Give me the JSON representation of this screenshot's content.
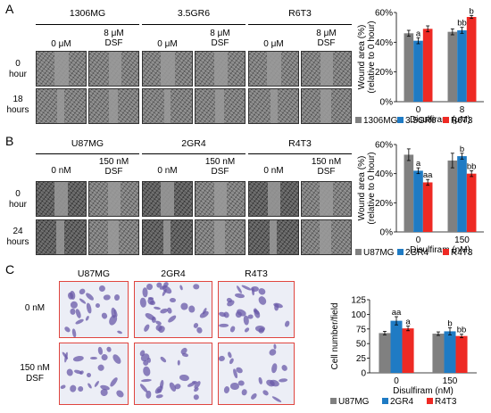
{
  "panels": {
    "a": {
      "letter": "A",
      "cell_lines": [
        "1306MG",
        "3.5GR6",
        "R6T3"
      ],
      "conditions": [
        {
          "line1": "0 μM",
          "line2": ""
        },
        {
          "line1": "8 μM",
          "line2": "DSF"
        }
      ],
      "rows": [
        {
          "line1": "0",
          "line2": "hour"
        },
        {
          "line1": "18",
          "line2": "hours"
        }
      ]
    },
    "b": {
      "letter": "B",
      "cell_lines": [
        "U87MG",
        "2GR4",
        "R4T3"
      ],
      "conditions": [
        {
          "line1": "0  nM",
          "line2": ""
        },
        {
          "line1": "150 nM",
          "line2": "DSF"
        }
      ],
      "rows": [
        {
          "line1": "0",
          "line2": "hour"
        },
        {
          "line1": "24",
          "line2": "hours"
        }
      ]
    },
    "c": {
      "letter": "C",
      "cell_lines": [
        "U87MG",
        "2GR4",
        "R4T3"
      ],
      "rows": [
        {
          "line1": "0 nM",
          "line2": ""
        },
        {
          "line1": "150 nM",
          "line2": "DSF"
        }
      ]
    }
  },
  "colors": {
    "gray": "#808080",
    "blue": "#1f7bc4",
    "red": "#ee2a24",
    "stain_border": "#e0453f"
  },
  "chart_data": [
    {
      "type": "bar",
      "ylabel_line1": "Wound area (%)",
      "ylabel_line2": "(relative to 0 hour)",
      "xlabel": "Disulfiram (μM)",
      "categories": [
        "0",
        "8"
      ],
      "yticks": [
        "0%",
        "20%",
        "40%",
        "60%"
      ],
      "ylim": [
        0,
        60
      ],
      "series": [
        {
          "name": "1306MG",
          "color": "#808080",
          "values": [
            46,
            47
          ],
          "errors": [
            2,
            2
          ],
          "sig": [
            "",
            ""
          ]
        },
        {
          "name": "3.5GR6",
          "color": "#1f7bc4",
          "values": [
            41,
            48
          ],
          "errors": [
            2,
            2
          ],
          "sig": [
            "a",
            "bb"
          ]
        },
        {
          "name": "R6T3",
          "color": "#ee2a24",
          "values": [
            49,
            57
          ],
          "errors": [
            2,
            1
          ],
          "sig": [
            "",
            "b"
          ]
        }
      ]
    },
    {
      "type": "bar",
      "ylabel_line1": "Wound area (%)",
      "ylabel_line2": "(relative to 0 hour)",
      "xlabel": "Disulfiram (nM)",
      "categories": [
        "0",
        "150"
      ],
      "yticks": [
        "0%",
        "20%",
        "40%",
        "60%"
      ],
      "ylim": [
        0,
        60
      ],
      "series": [
        {
          "name": "U87MG",
          "color": "#808080",
          "values": [
            53,
            49
          ],
          "errors": [
            4,
            5
          ],
          "sig": [
            "",
            ""
          ]
        },
        {
          "name": "2GR4",
          "color": "#1f7bc4",
          "values": [
            42,
            52
          ],
          "errors": [
            2,
            2
          ],
          "sig": [
            "a",
            "b"
          ]
        },
        {
          "name": "R4T3",
          "color": "#ee2a24",
          "values": [
            34,
            40
          ],
          "errors": [
            2,
            2
          ],
          "sig": [
            "aa",
            "bb"
          ]
        }
      ]
    },
    {
      "type": "bar",
      "ylabel_line1": "Cell number/field",
      "ylabel_line2": "",
      "xlabel": "Disulfiram (nM)",
      "categories": [
        "0",
        "150"
      ],
      "yticks": [
        "0",
        "25",
        "50",
        "75",
        "100",
        "125"
      ],
      "ylim": [
        0,
        125
      ],
      "series": [
        {
          "name": "U87MG",
          "color": "#808080",
          "values": [
            68,
            67
          ],
          "errors": [
            3,
            3
          ],
          "sig": [
            "",
            ""
          ]
        },
        {
          "name": "2GR4",
          "color": "#1f7bc4",
          "values": [
            89,
            71
          ],
          "errors": [
            7,
            6
          ],
          "sig": [
            "aa",
            "b"
          ]
        },
        {
          "name": "R4T3",
          "color": "#ee2a24",
          "values": [
            76,
            63
          ],
          "errors": [
            4,
            3
          ],
          "sig": [
            "a",
            "bb"
          ]
        }
      ]
    }
  ]
}
